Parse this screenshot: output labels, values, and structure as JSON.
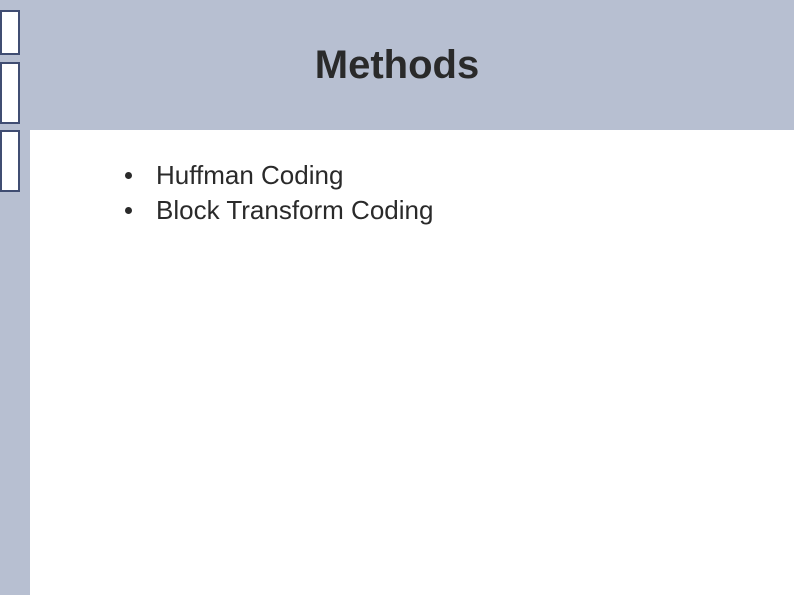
{
  "slide": {
    "title": "Methods",
    "title_fontsize": 40,
    "title_color": "#2a2a2a",
    "background_color": "#b7bfd1",
    "content_background": "#ffffff",
    "sidebar_border_color": "#404d72",
    "bullets": [
      {
        "text": "Huffman Coding"
      },
      {
        "text": "Block Transform Coding"
      }
    ],
    "bullet_fontsize": 26,
    "bullet_color": "#2a2a2a"
  }
}
